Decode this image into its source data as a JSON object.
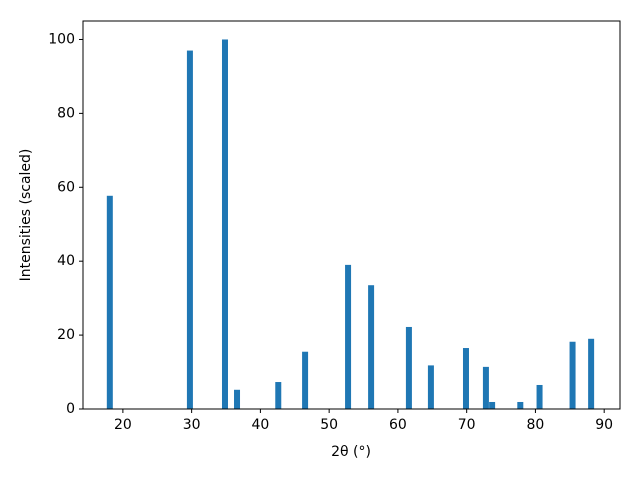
{
  "chart_data": {
    "type": "bar",
    "x_label": "2θ (°)",
    "y_label": "Intensities (scaled)",
    "x": [
      18.1,
      29.75,
      34.85,
      36.6,
      42.6,
      46.5,
      52.75,
      56.1,
      61.6,
      64.8,
      69.9,
      72.8,
      73.7,
      77.8,
      80.6,
      85.4,
      88.1
    ],
    "values": [
      57.7,
      97,
      100,
      5.2,
      7.3,
      15.5,
      39,
      33.5,
      22.2,
      11.8,
      16.5,
      11.4,
      1.9,
      1.9,
      6.5,
      18.2,
      19
    ],
    "color": "#1f77b4",
    "xlim": [
      14.2,
      92.3
    ],
    "xticks": [
      20,
      30,
      40,
      50,
      60,
      70,
      80,
      90
    ],
    "ylim": [
      0,
      105
    ],
    "yticks": [
      0,
      20,
      40,
      60,
      80,
      100
    ],
    "grid": false
  }
}
